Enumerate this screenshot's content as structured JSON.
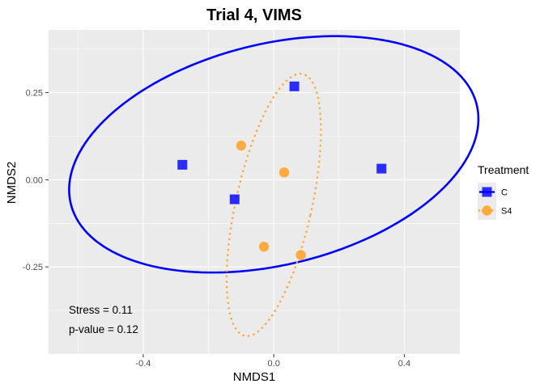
{
  "chart_data": {
    "type": "scatter",
    "title": "Trial 4, VIMS",
    "xlabel": "NMDS1",
    "ylabel": "NMDS2",
    "xlim": [
      -0.69,
      0.57
    ],
    "ylim": [
      -0.5,
      0.43
    ],
    "x_ticks": [
      -0.4,
      0.0,
      0.4
    ],
    "x_tick_labels": [
      "-0.4",
      "0.0",
      "0.4"
    ],
    "y_ticks": [
      -0.25,
      0.0,
      0.25
    ],
    "y_tick_labels": [
      "-0.25",
      "0.00",
      "0.25"
    ],
    "grid": true,
    "legend": {
      "title": "Treatment",
      "placement": "right"
    },
    "series": [
      {
        "name": "C",
        "color": "#0000ff",
        "marker": "square",
        "ellipse_style": "solid",
        "points": [
          {
            "x": -0.28,
            "y": 0.043
          },
          {
            "x": -0.12,
            "y": -0.056
          },
          {
            "x": 0.063,
            "y": 0.268
          },
          {
            "x": 0.33,
            "y": 0.032
          }
        ],
        "ellipse": {
          "cx": 0.0,
          "cy": 0.073,
          "rx": 0.638,
          "ry": 0.318,
          "angle_deg": 12.3
        }
      },
      {
        "name": "S4",
        "color": "#ffa533",
        "marker": "circle",
        "ellipse_style": "dotted",
        "points": [
          {
            "x": -0.1,
            "y": 0.098
          },
          {
            "x": 0.032,
            "y": 0.021
          },
          {
            "x": -0.03,
            "y": -0.192
          },
          {
            "x": 0.083,
            "y": -0.216
          }
        ],
        "ellipse": {
          "cx": 0.0,
          "cy": -0.072,
          "rx": 0.116,
          "ry": 0.386,
          "angle_deg": -13.5
        }
      }
    ],
    "annotations": [
      {
        "label": "Stress = ",
        "value": "0.11"
      },
      {
        "label": "p-value = ",
        "value": "0.12"
      }
    ]
  }
}
